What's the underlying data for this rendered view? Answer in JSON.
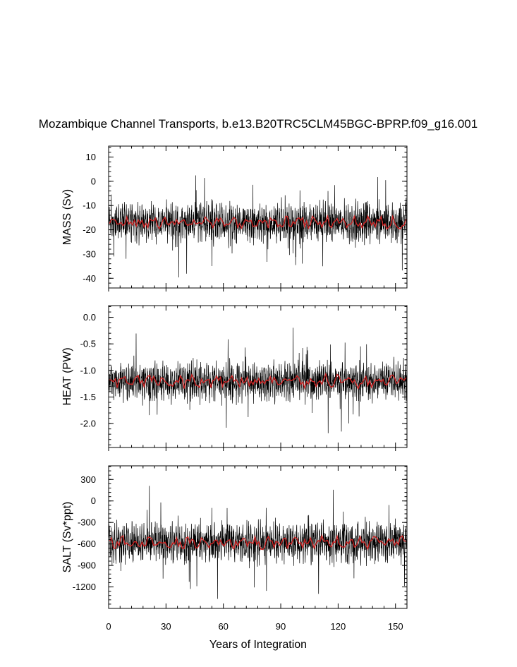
{
  "chart_data": {
    "type": "line",
    "title": "Mozambique Channel Transports, b.e13.B20TRC5CLM45BGC-BPRP.f09_g16.001",
    "xlabel": "Years of Integration",
    "xlim": [
      0,
      156
    ],
    "x_ticks": [
      0,
      30,
      60,
      90,
      120,
      150
    ],
    "x_tick_labels": [
      "0",
      "30",
      "60",
      "90",
      "120",
      "150"
    ],
    "colors": {
      "monthly": "#000000",
      "smoothed": "#cc2222"
    },
    "panels": [
      {
        "ylabel": "MASS (Sv)",
        "ylim": [
          -44,
          14.5
        ],
        "y_ticks": [
          10,
          0,
          -10,
          -20,
          -30,
          -40
        ],
        "y_tick_labels": [
          "10",
          "0",
          "-10",
          "-20",
          "-30",
          "-40"
        ],
        "mean": -17,
        "monthly_amplitude": 9.5,
        "smooth_amplitude": 2.2
      },
      {
        "ylabel": "HEAT (PW)",
        "ylim": [
          -2.45,
          0.22
        ],
        "y_ticks": [
          0.0,
          -0.5,
          -1.0,
          -1.5,
          -2.0
        ],
        "y_tick_labels": [
          "0.0",
          "-0.5",
          "-1.0",
          "-1.5",
          "-2.0"
        ],
        "mean": -1.2,
        "monthly_amplitude": 0.42,
        "smooth_amplitude": 0.11
      },
      {
        "ylabel": "SALT (Sv*ppt)",
        "ylim": [
          -1500,
          490
        ],
        "y_ticks": [
          300,
          0,
          -300,
          -600,
          -900,
          -1200
        ],
        "y_tick_labels": [
          "300",
          "0",
          "-300",
          "-600",
          "-900",
          "-1200"
        ],
        "mean": -580,
        "monthly_amplitude": 330,
        "smooth_amplitude": 80
      }
    ]
  }
}
